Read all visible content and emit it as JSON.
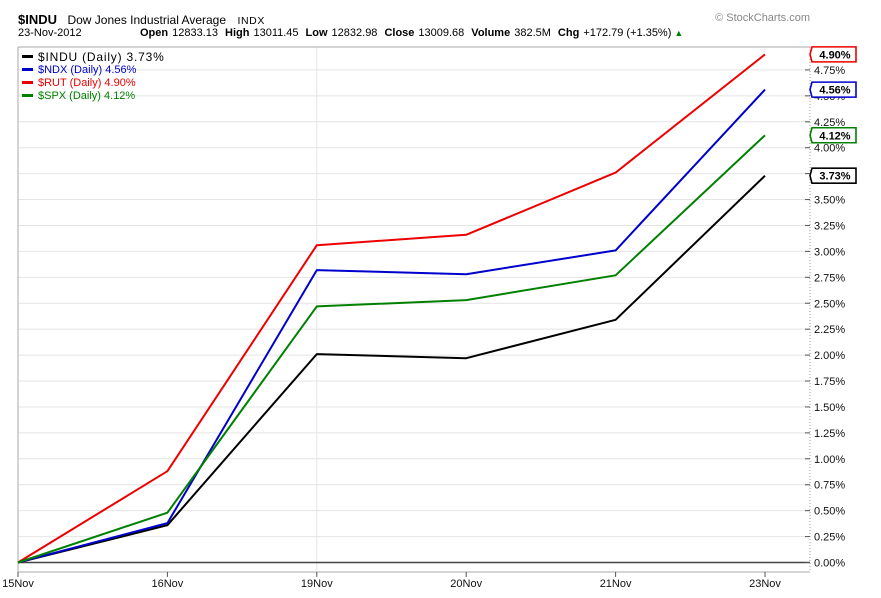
{
  "header": {
    "symbol": "$INDU",
    "title": "Dow Jones Industrial Average",
    "exchange": "INDX",
    "copyright": "© StockCharts.com",
    "date": "23-Nov-2012",
    "quote": [
      {
        "label": "Open",
        "value": "12833.13"
      },
      {
        "label": "High",
        "value": "13011.45"
      },
      {
        "label": "Low",
        "value": "12832.98"
      },
      {
        "label": "Close",
        "value": "13009.68"
      },
      {
        "label": "Volume",
        "value": "382.5M"
      },
      {
        "label": "Chg",
        "value": "+172.79 (+1.35%)"
      }
    ],
    "change_icon": "▲",
    "change_color": "#008000"
  },
  "chart_data": {
    "type": "line",
    "categories": [
      "15Nov",
      "16Nov",
      "19Nov",
      "20Nov",
      "21Nov",
      "23Nov"
    ],
    "series": [
      {
        "name": "$INDU",
        "legend_label": "$INDU (Daily) 3.73%",
        "color": "#000000",
        "values": [
          0,
          0.36,
          2.01,
          1.97,
          2.34,
          3.73
        ],
        "final_label": "3.73%"
      },
      {
        "name": "$NDX",
        "legend_label": "$NDX (Daily) 4.56%",
        "color": "#0000CC",
        "values": [
          0,
          0.38,
          2.82,
          2.78,
          3.01,
          4.56
        ],
        "final_label": "4.56%"
      },
      {
        "name": "$RUT",
        "legend_label": "$RUT (Daily) 4.90%",
        "color": "#EE0000",
        "values": [
          0,
          0.88,
          3.06,
          3.16,
          3.76,
          4.9
        ],
        "final_label": "4.90%"
      },
      {
        "name": "$SPX",
        "legend_label": "$SPX (Daily) 4.12%",
        "color": "#008000",
        "values": [
          0,
          0.48,
          2.47,
          2.53,
          2.77,
          4.12
        ],
        "final_label": "4.12%"
      }
    ],
    "y_tick_labels": [
      "4.75%",
      "4.50%",
      "4.25%",
      "4.00%",
      "3.75%",
      "3.50%",
      "3.25%",
      "3.00%",
      "2.75%",
      "2.50%",
      "2.25%",
      "2.00%",
      "1.75%",
      "1.50%",
      "1.25%",
      "1.00%",
      "0.75%",
      "0.50%",
      "0.25%",
      "0.00%"
    ],
    "ylim": [
      0,
      4.95
    ],
    "ylabel": "",
    "xlabel": "",
    "grid": true,
    "zero_line": true,
    "vertical_gridline_category": "19Nov",
    "legend_position": "top-left",
    "value_axis_side": "right"
  }
}
